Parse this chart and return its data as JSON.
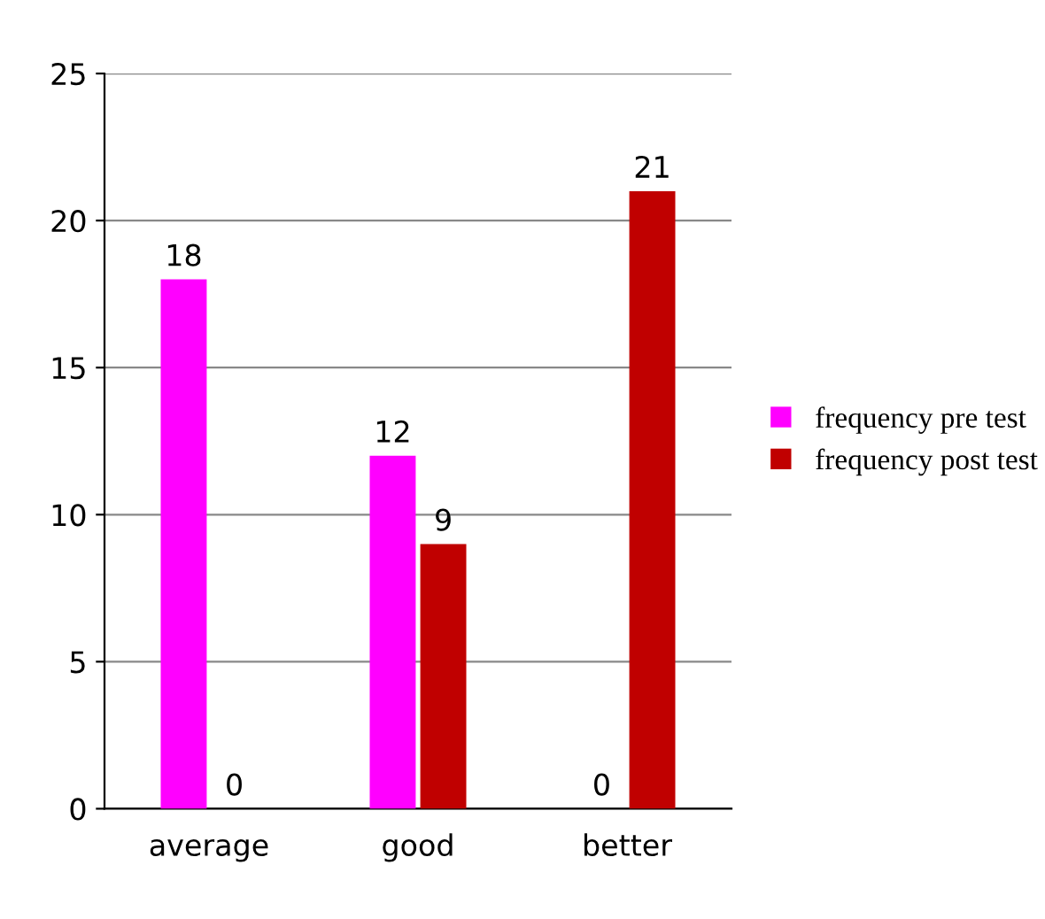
{
  "chart_data": {
    "type": "bar",
    "categories": [
      "average",
      "good",
      "better"
    ],
    "series": [
      {
        "name": "frequency pre test",
        "color": "#ff00ff",
        "values": [
          18,
          12,
          0
        ]
      },
      {
        "name": "frequency post test",
        "color": "#c00000",
        "values": [
          0,
          9,
          21
        ]
      }
    ],
    "ylim": [
      0,
      25
    ],
    "yticks": [
      0,
      5,
      10,
      15,
      20,
      25
    ],
    "grid": "y",
    "legend": "right",
    "data_labels": true
  }
}
